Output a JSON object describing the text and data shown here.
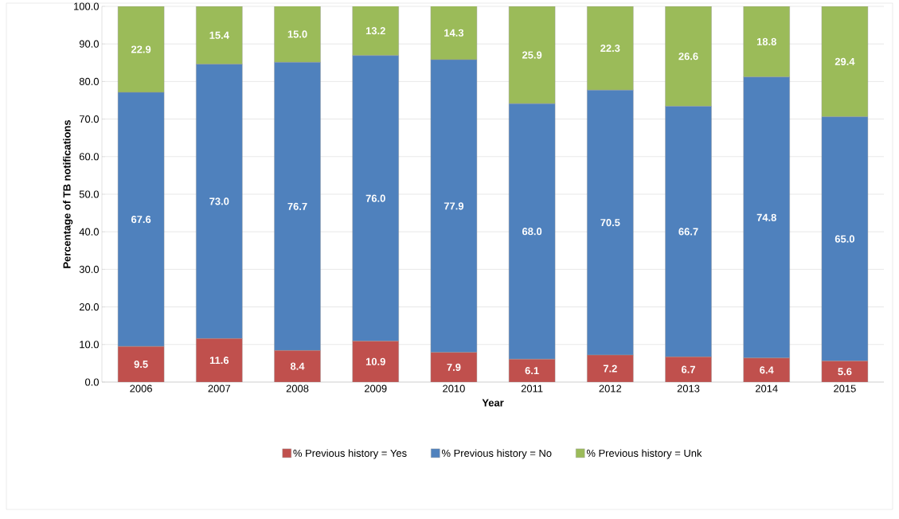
{
  "chart_data": {
    "type": "bar",
    "stacked": true,
    "xlabel": "Year",
    "ylabel": "Percentage of TB notifications",
    "categories": [
      "2006",
      "2007",
      "2008",
      "2009",
      "2010",
      "2011",
      "2012",
      "2013",
      "2014",
      "2015"
    ],
    "series": [
      {
        "name": "% Previous history = Yes",
        "color": "#c0504d",
        "values": [
          9.5,
          11.6,
          8.4,
          10.9,
          7.9,
          6.1,
          7.2,
          6.7,
          6.4,
          5.6
        ],
        "value_labels": [
          "9.5",
          "11.6",
          "8.4",
          "10.9",
          "7.9",
          "6.1",
          "7.2",
          "6.7",
          "6.4",
          "5.6"
        ]
      },
      {
        "name": "% Previous history = No",
        "color": "#4f81bd",
        "values": [
          67.6,
          73.0,
          76.7,
          76.0,
          77.9,
          68.0,
          70.5,
          66.7,
          74.8,
          65.0
        ],
        "value_labels": [
          "67.6",
          "73.0",
          "76.7",
          "76.0",
          "77.9",
          "68.0",
          "70.5",
          "66.7",
          "74.8",
          "65.0"
        ]
      },
      {
        "name": "% Previous history = Unk",
        "color": "#9bbb59",
        "values": [
          22.9,
          15.4,
          15.0,
          13.2,
          14.3,
          25.9,
          22.3,
          26.6,
          18.8,
          29.4
        ],
        "value_labels": [
          "22.9",
          "15.4",
          "15.0",
          "13.2",
          "14.3",
          "25.9",
          "22.3",
          "26.6",
          "18.8",
          "29.4"
        ]
      }
    ],
    "ylim": [
      0,
      100
    ],
    "yticks": [
      {
        "value": 0,
        "label": "0.0"
      },
      {
        "value": 10,
        "label": "10.0"
      },
      {
        "value": 20,
        "label": "20.0"
      },
      {
        "value": 30,
        "label": "30.0"
      },
      {
        "value": 40,
        "label": "40.0"
      },
      {
        "value": 50,
        "label": "50.0"
      },
      {
        "value": 60,
        "label": "60.0"
      },
      {
        "value": 70,
        "label": "70.0"
      },
      {
        "value": 80,
        "label": "80.0"
      },
      {
        "value": 90,
        "label": "90.0"
      },
      {
        "value": 100,
        "label": "100.0"
      }
    ],
    "grid": "y",
    "legend": "bottom"
  }
}
